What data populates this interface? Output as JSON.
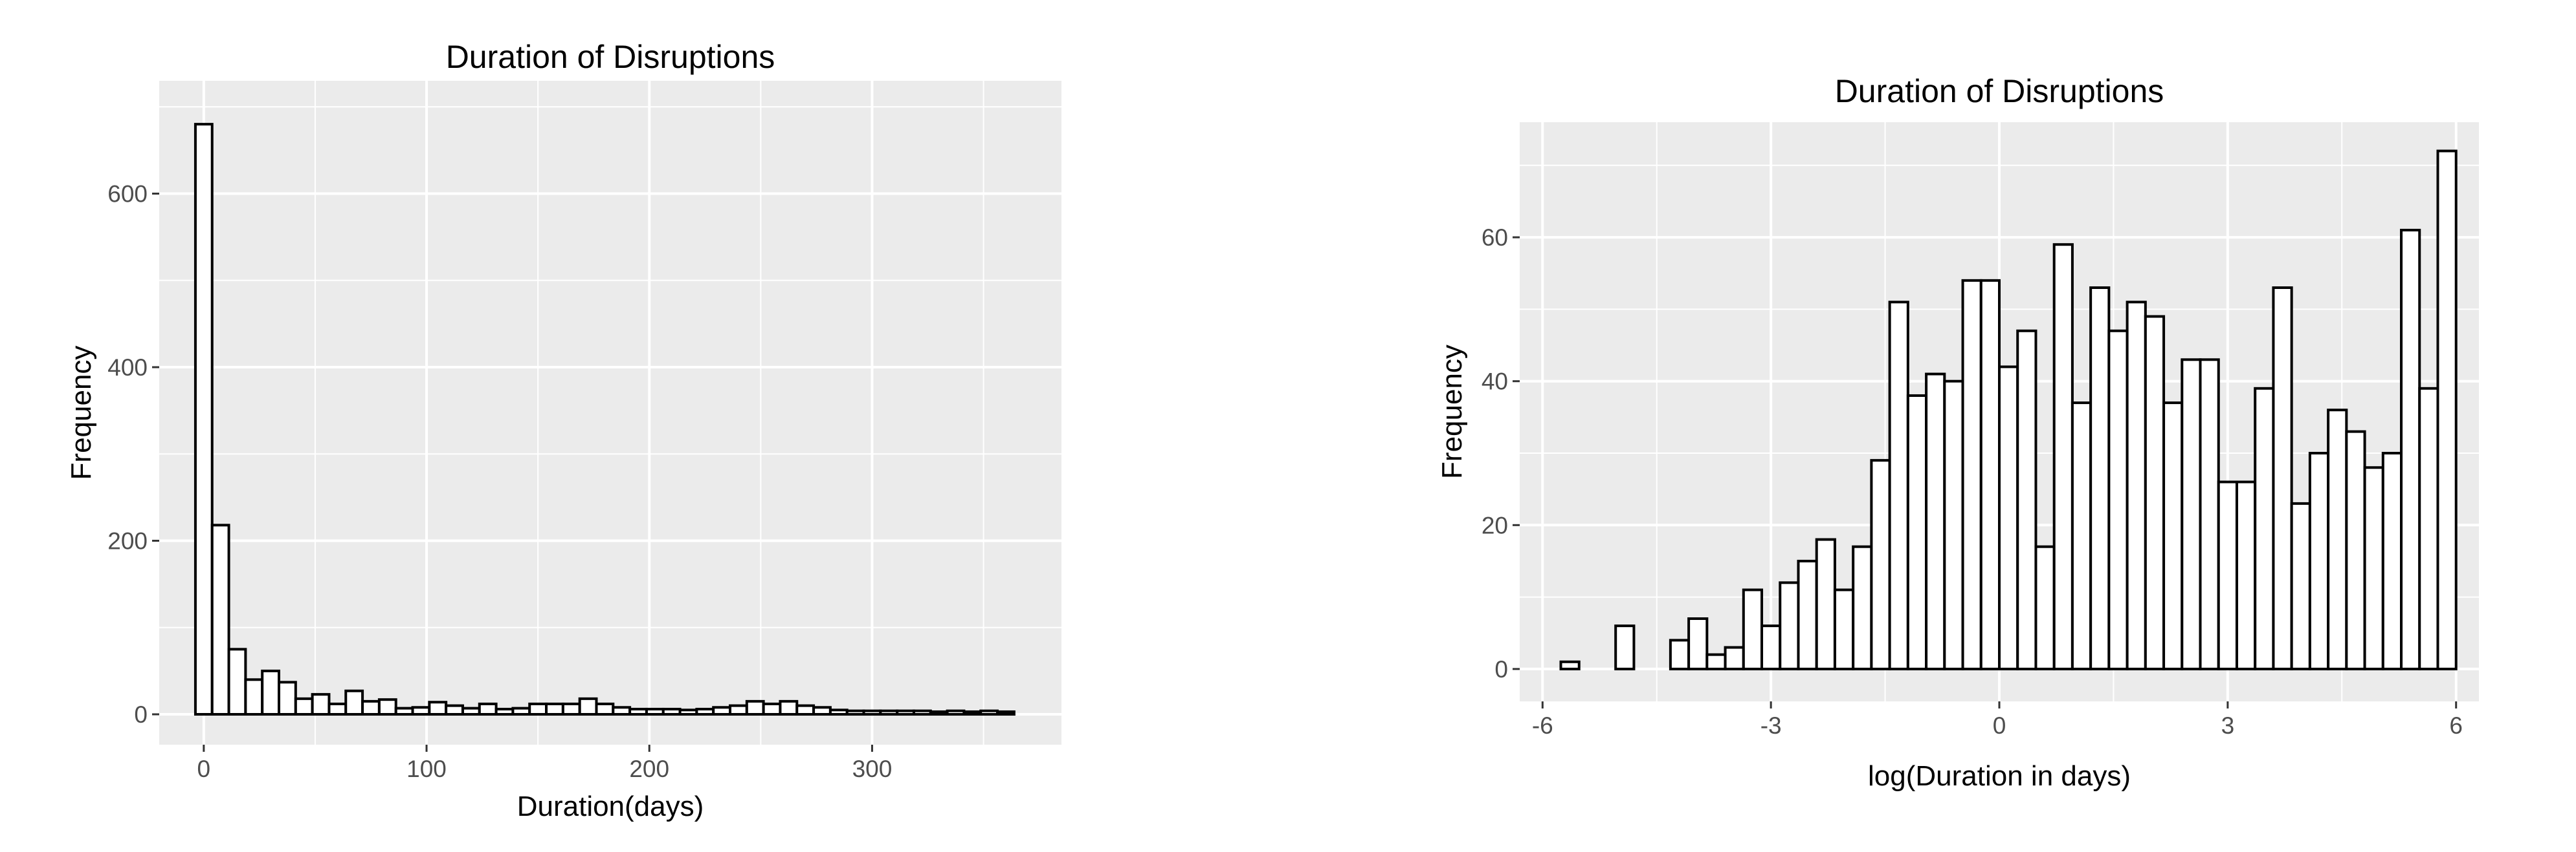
{
  "chart_data": [
    {
      "type": "bar",
      "title": "Duration of Disruptions",
      "xlabel": "Duration(days)",
      "ylabel": "Frequency",
      "xlim": [
        -20,
        385
      ],
      "ylim": [
        -35,
        730
      ],
      "x_ticks": [
        0,
        100,
        200,
        300
      ],
      "y_ticks": [
        0,
        200,
        400,
        600
      ],
      "grid": true,
      "bin_width": 7.5,
      "bin_centers": [
        0,
        7.5,
        15,
        22.5,
        30,
        37.5,
        45,
        52.5,
        60,
        67.5,
        75,
        82.5,
        90,
        97.5,
        105,
        112.5,
        120,
        127.5,
        135,
        142.5,
        150,
        157.5,
        165,
        172.5,
        180,
        187.5,
        195,
        202.5,
        210,
        217.5,
        225,
        232.5,
        240,
        247.5,
        255,
        262.5,
        270,
        277.5,
        285,
        292.5,
        300,
        307.5,
        315,
        322.5,
        330,
        337.5,
        345,
        352.5,
        360
      ],
      "values": [
        680,
        218,
        75,
        40,
        50,
        37,
        18,
        23,
        12,
        27,
        15,
        17,
        7,
        8,
        14,
        10,
        7,
        12,
        6,
        7,
        12,
        12,
        12,
        18,
        12,
        8,
        6,
        6,
        6,
        5,
        6,
        8,
        10,
        15,
        12,
        15,
        10,
        8,
        5,
        4,
        4,
        4,
        4,
        4,
        3,
        4,
        3,
        4,
        3
      ]
    },
    {
      "type": "bar",
      "title": "Duration of Disruptions",
      "xlabel": "log(Duration in days)",
      "ylabel": "Frequency",
      "xlim": [
        -6.3,
        6.3
      ],
      "ylim": [
        -4.5,
        76
      ],
      "x_ticks": [
        -6,
        -3,
        0,
        3,
        6
      ],
      "y_ticks": [
        0,
        20,
        40,
        60
      ],
      "grid": true,
      "bin_width": 0.24,
      "bin_centers": [
        -5.64,
        -5.4,
        -5.16,
        -4.92,
        -4.68,
        -4.44,
        -4.2,
        -3.96,
        -3.72,
        -3.48,
        -3.24,
        -3.0,
        -2.76,
        -2.52,
        -2.28,
        -2.04,
        -1.8,
        -1.56,
        -1.32,
        -1.08,
        -0.84,
        -0.6,
        -0.36,
        -0.12,
        0.12,
        0.36,
        0.6,
        0.84,
        1.08,
        1.32,
        1.56,
        1.8,
        2.04,
        2.28,
        2.52,
        2.76,
        3.0,
        3.24,
        3.48,
        3.72,
        3.96,
        4.2,
        4.44,
        4.68,
        4.92,
        5.16,
        5.4,
        5.64,
        5.88
      ],
      "values": [
        1,
        0,
        0,
        6,
        0,
        0,
        4,
        7,
        2,
        3,
        11,
        6,
        12,
        15,
        18,
        11,
        17,
        29,
        51,
        38,
        41,
        40,
        54,
        54,
        42,
        47,
        17,
        59,
        37,
        53,
        47,
        51,
        49,
        37,
        43,
        43,
        26,
        26,
        39,
        53,
        23,
        30,
        36,
        33,
        28,
        30,
        61,
        39,
        72
      ]
    }
  ]
}
